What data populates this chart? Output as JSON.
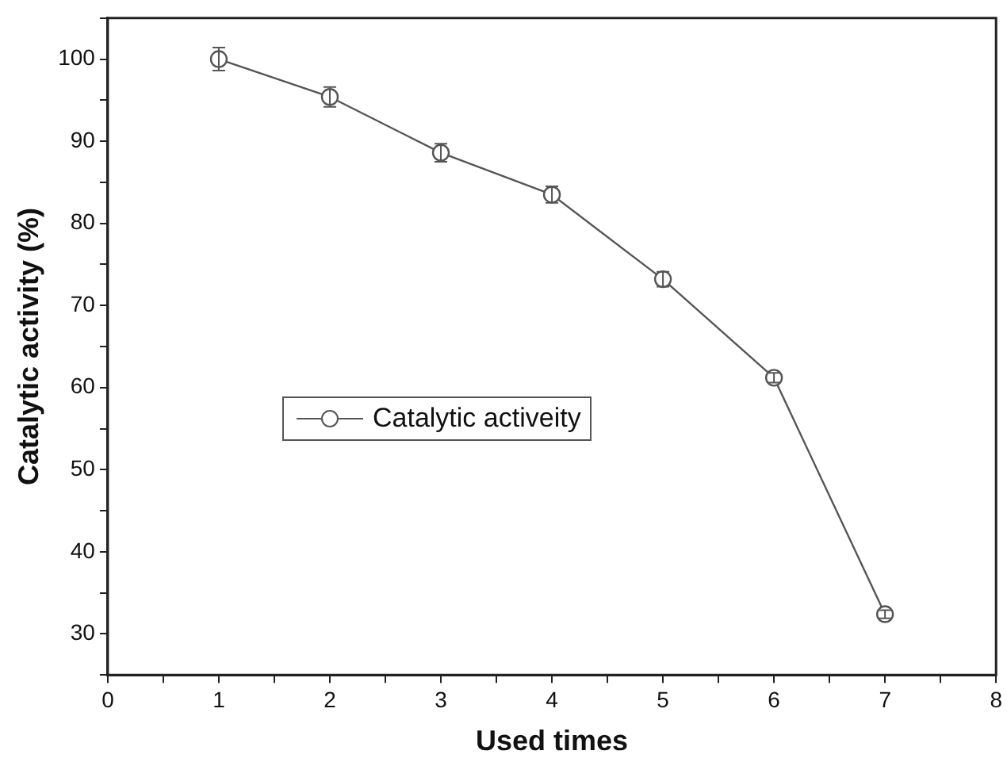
{
  "chart_data": {
    "type": "line",
    "xlabel": "Used times",
    "ylabel": "Catalytic activity (%)",
    "x": [
      1,
      2,
      3,
      4,
      5,
      6,
      7
    ],
    "series": [
      {
        "name": "Catalytic activeity",
        "color": "#555555",
        "values": [
          100,
          95.4,
          88.6,
          83.5,
          73.2,
          61.2,
          32.4
        ],
        "errors": [
          1.4,
          1.2,
          1.1,
          1.0,
          0.9,
          0.6,
          0.5
        ]
      }
    ],
    "xlim": [
      0,
      8
    ],
    "xticks": [
      0,
      {
        "value": 0.5,
        "label": null
      },
      1,
      {
        "value": 1.5,
        "label": null
      },
      2,
      {
        "value": 2.5,
        "label": null
      },
      3,
      {
        "value": 3.5,
        "label": null
      },
      4,
      {
        "value": 4.5,
        "label": null
      },
      5,
      {
        "value": 5.5,
        "label": null
      },
      6,
      {
        "value": 6.5,
        "label": null
      },
      7,
      {
        "value": 7.5,
        "label": null
      },
      8
    ],
    "ylim": [
      25,
      105
    ],
    "yticks": [
      {
        "value": 25,
        "label": null
      },
      30,
      {
        "value": 35,
        "label": null
      },
      40,
      {
        "value": 45,
        "label": null
      },
      50,
      {
        "value": 55,
        "label": null
      },
      60,
      {
        "value": 65,
        "label": null
      },
      70,
      {
        "value": 75,
        "label": null
      },
      80,
      {
        "value": 85,
        "label": null
      },
      90,
      {
        "value": 95,
        "label": null
      },
      100,
      {
        "value": 105,
        "label": null
      }
    ],
    "grid": false,
    "legend": "left",
    "marker": "circle",
    "line_style": "solid"
  }
}
